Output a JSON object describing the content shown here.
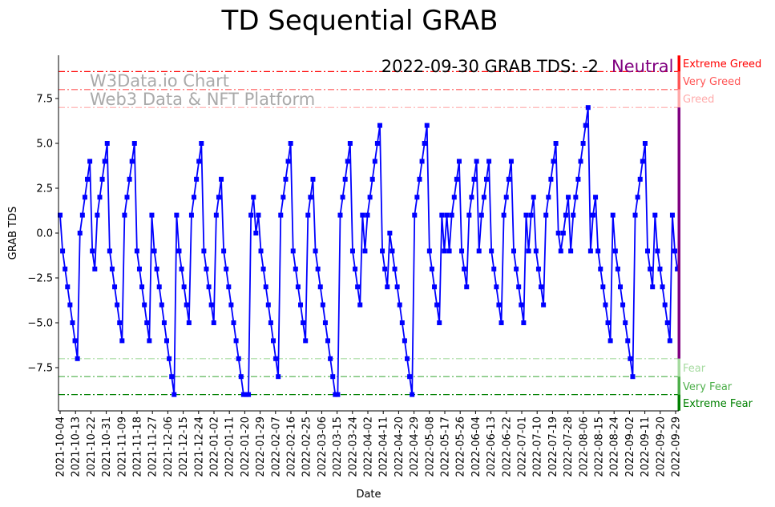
{
  "chart_data": {
    "type": "line",
    "title": "TD Sequential GRAB",
    "xlabel": "Date",
    "ylabel": "GRAB TDS",
    "x_start": "2021-10-04",
    "x_end": "2022-09-30",
    "ylim": [
      -9.9,
      9.9
    ],
    "grid": false,
    "series_color": "#0000ff",
    "xticks": [
      "2021-10-04",
      "2021-10-13",
      "2021-10-22",
      "2021-10-31",
      "2021-11-09",
      "2021-11-18",
      "2021-11-27",
      "2021-12-06",
      "2021-12-15",
      "2021-12-24",
      "2022-01-02",
      "2022-01-11",
      "2022-01-20",
      "2022-01-29",
      "2022-02-07",
      "2022-02-16",
      "2022-02-25",
      "2022-03-06",
      "2022-03-15",
      "2022-03-24",
      "2022-04-02",
      "2022-04-11",
      "2022-04-20",
      "2022-04-29",
      "2022-05-08",
      "2022-05-17",
      "2022-05-26",
      "2022-06-04",
      "2022-06-13",
      "2022-06-22",
      "2022-07-01",
      "2022-07-10",
      "2022-07-19",
      "2022-07-28",
      "2022-08-06",
      "2022-08-15",
      "2022-08-24",
      "2022-09-02",
      "2022-09-11",
      "2022-09-20",
      "2022-09-29"
    ],
    "yticks": [
      -7.5,
      -5.0,
      -2.5,
      0.0,
      2.5,
      5.0,
      7.5
    ],
    "ytick_labels": [
      "−7.5",
      "−5.0",
      "−2.5",
      "0.0",
      "2.5",
      "5.0",
      "7.5"
    ],
    "values": [
      1,
      -1,
      -2,
      -3,
      -4,
      -5,
      -6,
      -7,
      0,
      1,
      2,
      3,
      4,
      -1,
      -2,
      1,
      2,
      3,
      4,
      5,
      -1,
      -2,
      -3,
      -4,
      -5,
      -6,
      1,
      2,
      3,
      4,
      5,
      -1,
      -2,
      -3,
      -4,
      -5,
      -6,
      1,
      -1,
      -2,
      -3,
      -4,
      -5,
      -6,
      -7,
      -8,
      -9,
      1,
      -1,
      -2,
      -3,
      -4,
      -5,
      1,
      2,
      3,
      4,
      5,
      -1,
      -2,
      -3,
      -4,
      -5,
      1,
      2,
      3,
      -1,
      -2,
      -3,
      -4,
      -5,
      -6,
      -7,
      -8,
      -9,
      -9,
      -9,
      1,
      2,
      0,
      1,
      -1,
      -2,
      -3,
      -4,
      -5,
      -6,
      -7,
      -8,
      1,
      2,
      3,
      4,
      5,
      -1,
      -2,
      -3,
      -4,
      -5,
      -6,
      1,
      2,
      3,
      -1,
      -2,
      -3,
      -4,
      -5,
      -6,
      -7,
      -8,
      -9,
      -9,
      1,
      2,
      3,
      4,
      5,
      -1,
      -2,
      -3,
      -4,
      1,
      -1,
      1,
      2,
      3,
      4,
      5,
      6,
      -1,
      -2,
      -3,
      0,
      -1,
      -2,
      -3,
      -4,
      -5,
      -6,
      -7,
      -8,
      -9,
      1,
      2,
      3,
      4,
      5,
      6,
      -1,
      -2,
      -3,
      -4,
      -5,
      1,
      -1,
      1,
      -1,
      1,
      2,
      3,
      4,
      -1,
      -2,
      -3,
      1,
      2,
      3,
      4,
      -1,
      1,
      2,
      3,
      4,
      -1,
      -2,
      -3,
      -4,
      -5,
      1,
      2,
      3,
      4,
      -1,
      -2,
      -3,
      -4,
      -5,
      1,
      -1,
      1,
      2,
      -1,
      -2,
      -3,
      -4,
      1,
      2,
      3,
      4,
      5,
      0,
      -1,
      0,
      1,
      2,
      -1,
      1,
      2,
      3,
      4,
      5,
      6,
      7,
      -1,
      1,
      2,
      -1,
      -2,
      -3,
      -4,
      -5,
      -6,
      1,
      -1,
      -2,
      -3,
      -4,
      -5,
      -6,
      -7,
      -8,
      1,
      2,
      3,
      4,
      5,
      -1,
      -2,
      -3,
      1,
      -1,
      -2,
      -3,
      -4,
      -5,
      -6,
      1,
      -1,
      -2
    ],
    "levels": [
      {
        "label": "Extreme Greed",
        "value": 9,
        "color": "#ff0000"
      },
      {
        "label": "Very Greed",
        "value": 8,
        "color": "#ff5555"
      },
      {
        "label": "Greed",
        "value": 7,
        "color": "#ffaaaa"
      },
      {
        "label": "Fear",
        "value": -7,
        "color": "#a6dba0"
      },
      {
        "label": "Very Fear",
        "value": -8,
        "color": "#4daf4a"
      },
      {
        "label": "Extreme Fear",
        "value": -9,
        "color": "#008000"
      }
    ],
    "neutral_color": "#800080",
    "annotation": {
      "text": "2022-09-30 GRAB TDS: -2",
      "status": "Neutral",
      "status_color": "#800080"
    },
    "watermark": {
      "line1": "W3Data.io Chart",
      "line2": "Web3 Data & NFT Platform"
    }
  }
}
